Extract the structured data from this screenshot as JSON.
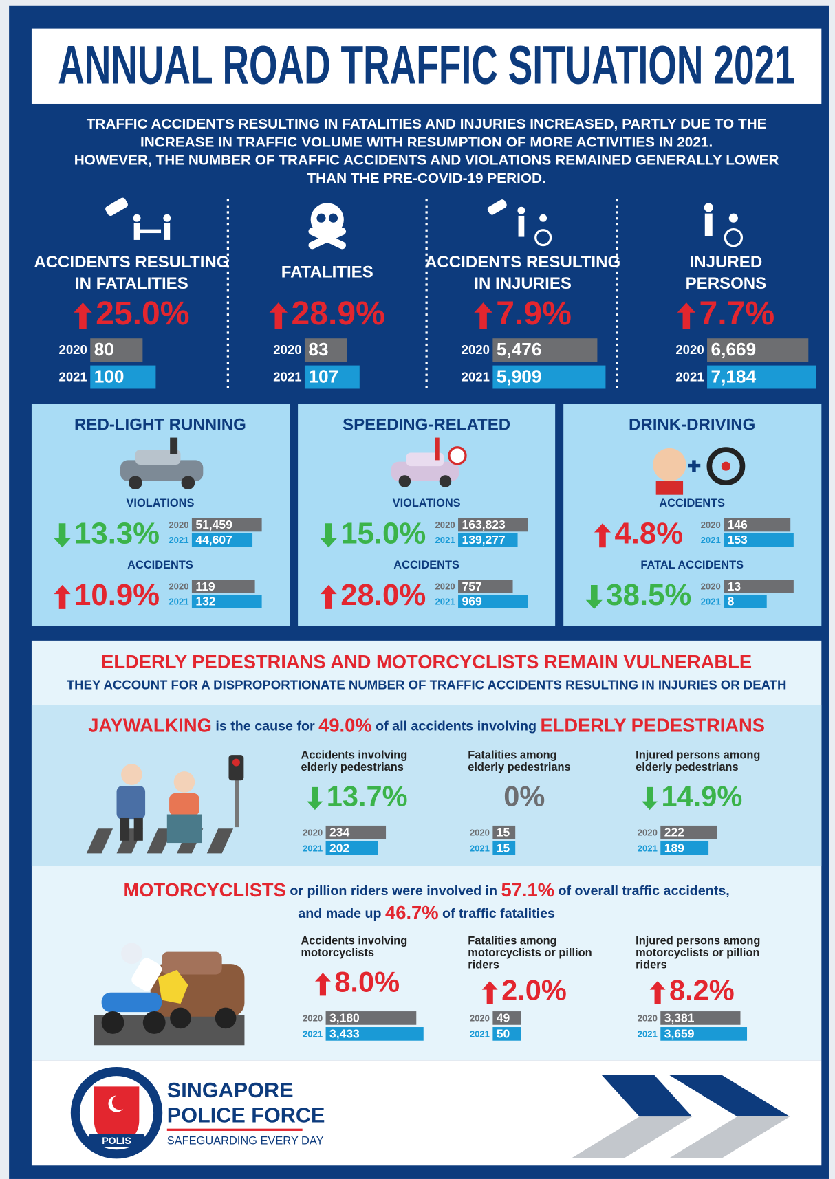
{
  "title": "ANNUAL ROAD TRAFFIC SITUATION 2021",
  "intro": [
    "TRAFFIC ACCIDENTS RESULTING IN FATALITIES AND INJURIES INCREASED, PARTLY DUE TO THE",
    "INCREASE IN TRAFFIC VOLUME WITH RESUMPTION OF MORE ACTIVITIES IN 2021.",
    "HOWEVER, THE NUMBER OF TRAFFIC ACCIDENTS AND VIOLATIONS REMAINED GENERALLY LOWER",
    "THAN THE PRE-COVID-19 PERIOD."
  ],
  "years": [
    "2020",
    "2021"
  ],
  "headline_stats": [
    {
      "label": [
        "ACCIDENTS RESULTING",
        "IN FATALITIES"
      ],
      "change": "25.0%",
      "direction": "up",
      "values": [
        80,
        100
      ]
    },
    {
      "label": [
        "FATALITIES"
      ],
      "change": "28.9%",
      "direction": "up",
      "values": [
        83,
        107
      ]
    },
    {
      "label": [
        "ACCIDENTS RESULTING",
        "IN INJURIES"
      ],
      "change": "7.9%",
      "direction": "up",
      "values": [
        {
          "value": 5476,
          "label": "5,476"
        },
        {
          "value": 5909,
          "label": "5,909"
        }
      ]
    },
    {
      "label": [
        "INJURED",
        "PERSONS"
      ],
      "change": "7.7%",
      "direction": "up",
      "values": [
        {
          "value": 6669,
          "label": "6,669"
        },
        {
          "value": 7184,
          "label": "7,184"
        }
      ]
    }
  ],
  "violation_panels": [
    {
      "title": "RED-LIGHT RUNNING",
      "blocks": [
        {
          "label": "VIOLATIONS",
          "change": "13.3%",
          "direction": "down",
          "values": [
            {
              "value": 51459,
              "label": "51,459"
            },
            {
              "value": 44607,
              "label": "44,607"
            }
          ]
        },
        {
          "label": "ACCIDENTS",
          "change": "10.9%",
          "direction": "up",
          "values": [
            119,
            132
          ]
        }
      ]
    },
    {
      "title": "SPEEDING-RELATED",
      "blocks": [
        {
          "label": "VIOLATIONS",
          "change": "15.0%",
          "direction": "down",
          "values": [
            {
              "value": 163823,
              "label": "163,823"
            },
            {
              "value": 139277,
              "label": "139,277"
            }
          ]
        },
        {
          "label": "ACCIDENTS",
          "change": "28.0%",
          "direction": "up",
          "values": [
            757,
            969
          ]
        }
      ]
    },
    {
      "title": "DRINK-DRIVING",
      "blocks": [
        {
          "label": "ACCIDENTS",
          "change": "4.8%",
          "direction": "up",
          "values": [
            146,
            153
          ]
        },
        {
          "label": "FATAL ACCIDENTS",
          "change": "38.5%",
          "direction": "down",
          "values": [
            13,
            8
          ]
        }
      ]
    }
  ],
  "vulnerable": {
    "heading": "ELDERLY PEDESTRIANS AND MOTORCYCLISTS REMAIN VULNERABLE",
    "subheading": "THEY ACCOUNT FOR A DISPROPORTIONATE NUMBER OF TRAFFIC ACCIDENTS RESULTING IN INJURIES OR DEATH",
    "jaywalking": {
      "sentence": [
        [
          {
            "text": "JAYWALKING",
            "emphasis": true
          },
          {
            "text": " is the cause for ",
            "emphasis": false
          },
          {
            "text": "49.0%",
            "emphasis": true
          },
          {
            "text": " of all accidents involving ",
            "emphasis": false
          },
          {
            "text": "ELDERLY PEDESTRIANS",
            "emphasis": true
          }
        ]
      ],
      "stats": [
        {
          "label": [
            "Accidents involving",
            "elderly pedestrians"
          ],
          "change": "13.7%",
          "direction": "down",
          "values": [
            234,
            202
          ]
        },
        {
          "label": [
            "Fatalities among",
            "elderly pedestrians"
          ],
          "change": "0%",
          "direction": "none",
          "values": [
            15,
            15
          ]
        },
        {
          "label": [
            "Injured persons among",
            "elderly pedestrians"
          ],
          "change": "14.9%",
          "direction": "down",
          "values": [
            222,
            189
          ]
        }
      ]
    },
    "motorcyclists": {
      "sentence": [
        [
          {
            "text": "MOTORCYCLISTS",
            "emphasis": true
          },
          {
            "text": " or pillion riders were involved in ",
            "emphasis": false
          },
          {
            "text": "57.1%",
            "emphasis": true
          },
          {
            "text": " of overall traffic accidents,",
            "emphasis": false
          }
        ],
        [
          {
            "text": "and made up ",
            "emphasis": false
          },
          {
            "text": "46.7%",
            "emphasis": true
          },
          {
            "text": " of traffic fatalities",
            "emphasis": false
          }
        ]
      ],
      "stats": [
        {
          "label": [
            "Accidents involving",
            "motorcyclists"
          ],
          "change": "8.0%",
          "direction": "up",
          "values": [
            {
              "value": 3180,
              "label": "3,180"
            },
            {
              "value": 3433,
              "label": "3,433"
            }
          ]
        },
        {
          "label": [
            "Fatalities among",
            "motorcyclists or pillion",
            "riders"
          ],
          "change": "2.0%",
          "direction": "up",
          "values": [
            49,
            50
          ]
        },
        {
          "label": [
            "Injured persons among",
            "motorcyclists or pillion",
            "riders"
          ],
          "change": "8.2%",
          "direction": "up",
          "values": [
            {
              "value": 3381,
              "label": "3,381"
            },
            {
              "value": 3659,
              "label": "3,659"
            }
          ]
        }
      ]
    }
  },
  "footer": {
    "org": [
      "SINGAPORE",
      "POLICE FORCE"
    ],
    "motto": "SAFEGUARDING EVERY DAY",
    "badge": "POLIS"
  }
}
